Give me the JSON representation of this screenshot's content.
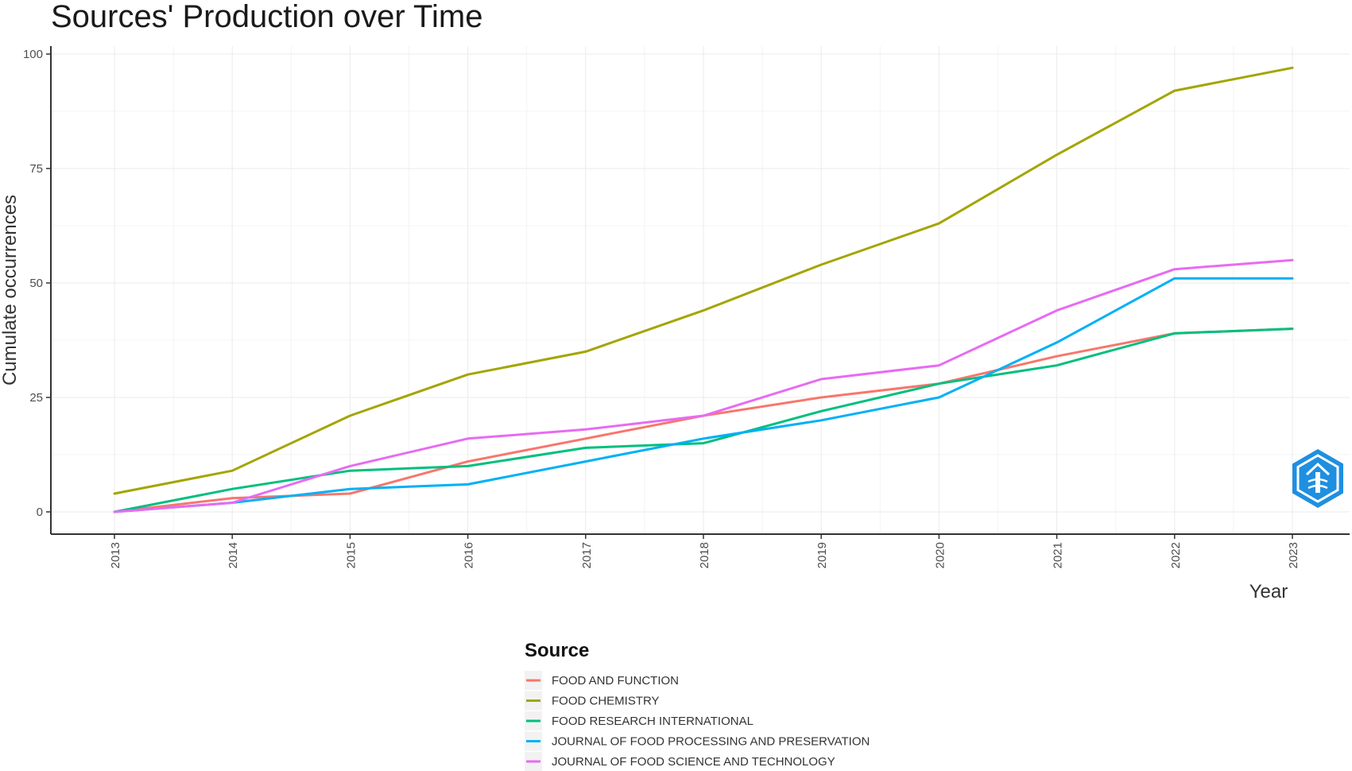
{
  "chart_data": {
    "type": "line",
    "title": "Sources' Production over Time",
    "xlabel": "Year",
    "ylabel": "Cumulate occurrences",
    "x": [
      2013,
      2014,
      2015,
      2016,
      2017,
      2018,
      2019,
      2020,
      2021,
      2022,
      2023
    ],
    "xlim": [
      2013,
      2023
    ],
    "ylim": [
      0,
      100
    ],
    "y_ticks": [
      0,
      25,
      50,
      75,
      100
    ],
    "grid": true,
    "legend_title": "Source",
    "legend_position": "bottom",
    "series": [
      {
        "name": "FOOD AND FUNCTION",
        "color": "#F8766D",
        "values": [
          0,
          3,
          4,
          11,
          16,
          21,
          25,
          28,
          34,
          39,
          40
        ]
      },
      {
        "name": "FOOD CHEMISTRY",
        "color": "#A3A500",
        "values": [
          4,
          9,
          21,
          30,
          35,
          44,
          54,
          63,
          78,
          92,
          97
        ]
      },
      {
        "name": "FOOD RESEARCH INTERNATIONAL",
        "color": "#00BF7D",
        "values": [
          0,
          5,
          9,
          10,
          14,
          15,
          22,
          28,
          32,
          39,
          40
        ]
      },
      {
        "name": "JOURNAL OF FOOD PROCESSING AND PRESERVATION",
        "color": "#00B0F6",
        "values": [
          0,
          2,
          5,
          6,
          11,
          16,
          20,
          25,
          37,
          51,
          51
        ]
      },
      {
        "name": "JOURNAL OF FOOD SCIENCE AND TECHNOLOGY",
        "color": "#E76BF3",
        "values": [
          0,
          2,
          10,
          16,
          18,
          21,
          29,
          32,
          44,
          53,
          55
        ]
      }
    ]
  },
  "watermark": {
    "icon": "hexagon-logo-icon",
    "color": "#1f8fe0"
  }
}
